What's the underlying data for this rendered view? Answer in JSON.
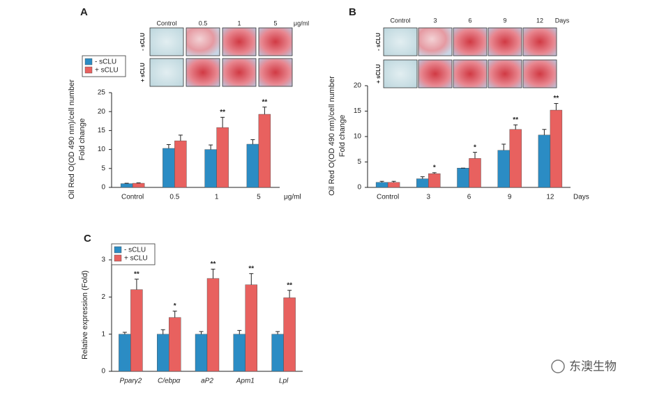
{
  "chart_data": [
    {
      "type": "bar",
      "panel": "A",
      "ylabel": [
        "Oil Red O(OD 490 nm)/cell number",
        "Fold change"
      ],
      "x_unit": "μg/ml",
      "categories": [
        "Control",
        "0.5",
        "1",
        "5"
      ],
      "series": [
        {
          "name": "- sCLU",
          "color": "#2b8cc4",
          "values": [
            1.0,
            10.3,
            10.0,
            11.4
          ],
          "errors": [
            0.1,
            1.0,
            1.2,
            1.2
          ],
          "significance": [
            null,
            null,
            null,
            null
          ]
        },
        {
          "name": "+ sCLU",
          "color": "#e8615f",
          "values": [
            1.1,
            12.3,
            15.8,
            19.3
          ],
          "errors": [
            0.1,
            1.5,
            2.7,
            1.9
          ],
          "significance": [
            null,
            null,
            "**",
            "**"
          ]
        }
      ],
      "ylim": [
        0,
        25
      ],
      "yticks": [
        0,
        5,
        10,
        15,
        20,
        25
      ],
      "legend": "upper left"
    },
    {
      "type": "bar",
      "panel": "B",
      "ylabel": [
        "Oil Red O(OD 490 nm)/cell number",
        "Fold change"
      ],
      "x_unit": "Days",
      "categories": [
        "Control",
        "3",
        "6",
        "9",
        "12"
      ],
      "series": [
        {
          "name": "- sCLU",
          "color": "#2b8cc4",
          "values": [
            1.0,
            1.7,
            3.8,
            7.3,
            10.3
          ],
          "errors": [
            0.2,
            0.4,
            0,
            1.2,
            1.1
          ],
          "significance": [
            null,
            null,
            null,
            null,
            null
          ]
        },
        {
          "name": "+ sCLU",
          "color": "#e8615f",
          "values": [
            1.0,
            2.7,
            5.7,
            11.4,
            15.2
          ],
          "errors": [
            0.2,
            0.2,
            1.2,
            0.9,
            1.3
          ],
          "significance": [
            null,
            "*",
            "*",
            "**",
            "**"
          ]
        }
      ],
      "ylim": [
        0,
        20
      ],
      "yticks": [
        0,
        5,
        10,
        15,
        20
      ],
      "legend": null
    },
    {
      "type": "bar",
      "panel": "C",
      "ylabel": [
        "Relative expression (Fold)"
      ],
      "categories": [
        "Pparγ2",
        "C/ebpα",
        "aP2",
        "Apm1",
        "Lpl"
      ],
      "series": [
        {
          "name": "- sCLU",
          "color": "#2b8cc4",
          "values": [
            1,
            1,
            1,
            1,
            1
          ],
          "errors": [
            0.05,
            0.12,
            0.07,
            0.1,
            0.07
          ],
          "significance": [
            null,
            null,
            null,
            null,
            null
          ]
        },
        {
          "name": "+ sCLU",
          "color": "#e8615f",
          "values": [
            2.2,
            1.45,
            2.5,
            2.33,
            1.98
          ],
          "errors": [
            0.28,
            0.17,
            0.25,
            0.3,
            0.2
          ],
          "significance": [
            "**",
            "*",
            "**",
            "**",
            "**"
          ]
        }
      ],
      "ylim": [
        0,
        3
      ],
      "yticks": [
        0,
        1,
        2,
        3
      ],
      "legend": "upper left",
      "italic_categories": true
    }
  ],
  "watermark": "东澳生物"
}
